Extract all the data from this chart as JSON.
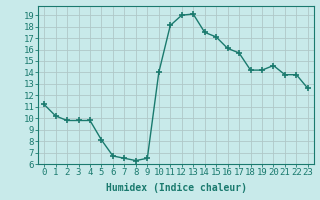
{
  "x": [
    0,
    1,
    2,
    3,
    4,
    5,
    6,
    7,
    8,
    9,
    10,
    11,
    12,
    13,
    14,
    15,
    16,
    17,
    18,
    19,
    20,
    21,
    22,
    23
  ],
  "y": [
    11.2,
    10.2,
    9.8,
    9.8,
    9.8,
    8.1,
    6.7,
    6.5,
    6.3,
    6.5,
    14.0,
    18.1,
    19.0,
    19.1,
    17.5,
    17.1,
    16.1,
    15.7,
    14.2,
    14.2,
    14.6,
    13.8,
    13.8,
    12.6
  ],
  "line_color": "#1a7a6e",
  "marker": "+",
  "marker_size": 4,
  "line_width": 1.0,
  "bg_color": "#c8eaea",
  "grid_color": "#b0c8c8",
  "xlabel": "Humidex (Indice chaleur)",
  "xlim": [
    -0.5,
    23.5
  ],
  "ylim": [
    6,
    19.8
  ],
  "xtick_labels": [
    "0",
    "1",
    "2",
    "3",
    "4",
    "5",
    "6",
    "7",
    "8",
    "9",
    "10",
    "11",
    "12",
    "13",
    "14",
    "15",
    "16",
    "17",
    "18",
    "19",
    "20",
    "21",
    "22",
    "23"
  ],
  "yticks": [
    6,
    7,
    8,
    9,
    10,
    11,
    12,
    13,
    14,
    15,
    16,
    17,
    18,
    19
  ],
  "tick_color": "#1a7a6e",
  "label_color": "#1a7a6e",
  "xlabel_fontsize": 7,
  "tick_fontsize": 6.5
}
